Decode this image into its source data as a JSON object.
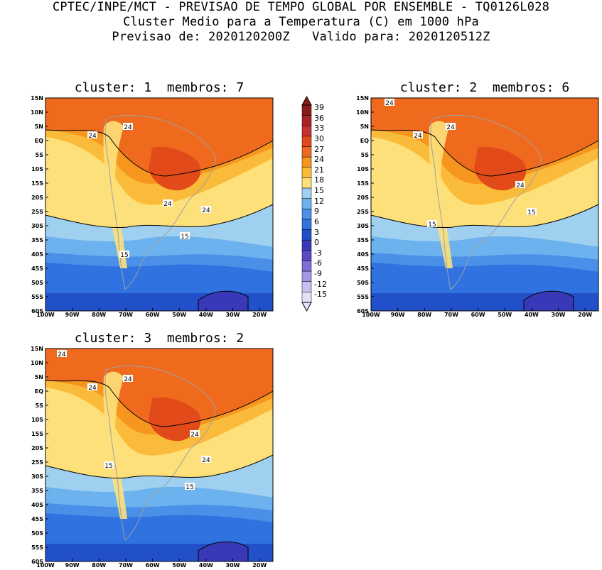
{
  "header": {
    "line1": "CPTEC/INPE/MCT - PREVISAO DE TEMPO GLOBAL POR ENSEMBLE - TQ0126L028",
    "line2": "Cluster Medio para a Temperatura (C) em 1000 hPa",
    "line3": "Previsao de: 2020120200Z   Valido para: 2020120512Z"
  },
  "panels": [
    {
      "title": "cluster: 1  membros: 7",
      "contour_labels": [
        "24",
        "24",
        "24",
        "24",
        "15",
        "15"
      ]
    },
    {
      "title": "cluster: 2  membros: 6",
      "contour_labels": [
        "24",
        "24",
        "24",
        "24",
        "15",
        "15"
      ]
    },
    {
      "title": "cluster: 3  membros: 2",
      "contour_labels": [
        "24",
        "24",
        "24",
        "24",
        "24",
        "15",
        "15"
      ]
    }
  ],
  "axes": {
    "lat_labels": [
      "15N",
      "10N",
      "5N",
      "EQ",
      "5S",
      "10S",
      "15S",
      "20S",
      "25S",
      "30S",
      "35S",
      "40S",
      "45S",
      "50S",
      "55S",
      "60S"
    ],
    "lon_labels": [
      "100W",
      "90W",
      "80W",
      "70W",
      "60W",
      "50W",
      "40W",
      "30W",
      "20W"
    ]
  },
  "colorbar": {
    "labels": [
      "39",
      "36",
      "33",
      "30",
      "27",
      "24",
      "21",
      "18",
      "15",
      "12",
      "9",
      "6",
      "3",
      "0",
      "-3",
      "-6",
      "-9",
      "-12",
      "-15"
    ],
    "colors": [
      "#8a1a1a",
      "#a82424",
      "#c83232",
      "#e24a1a",
      "#f06a1e",
      "#f7961e",
      "#fbbb3a",
      "#fde07a",
      "#9fd0f0",
      "#6cb2ee",
      "#4a8fe8",
      "#2f72e0",
      "#2250c8",
      "#3838b8",
      "#5a4ac8",
      "#7f6fd8",
      "#a498e4",
      "#c8c0ee",
      "#e4e0f8"
    ]
  }
}
